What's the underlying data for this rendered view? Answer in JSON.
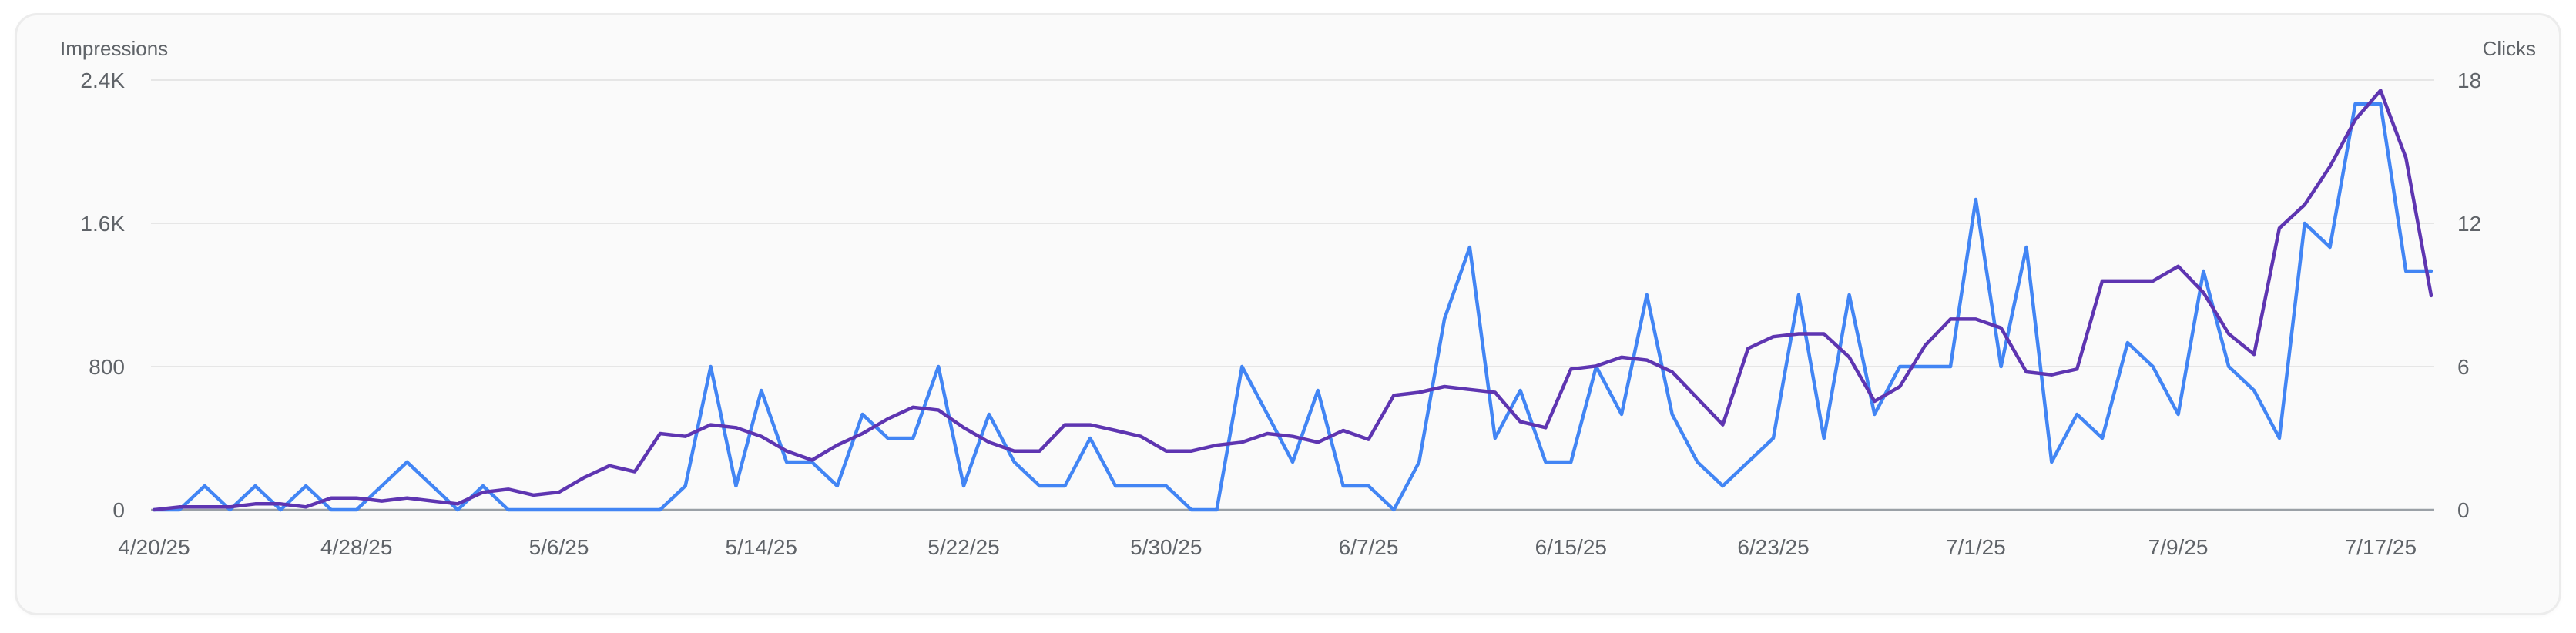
{
  "chart_data": {
    "type": "line",
    "x": [
      "4/20/25",
      "4/21/25",
      "4/22/25",
      "4/23/25",
      "4/24/25",
      "4/25/25",
      "4/26/25",
      "4/27/25",
      "4/28/25",
      "4/29/25",
      "4/30/25",
      "5/1/25",
      "5/2/25",
      "5/3/25",
      "5/4/25",
      "5/5/25",
      "5/6/25",
      "5/7/25",
      "5/8/25",
      "5/9/25",
      "5/10/25",
      "5/11/25",
      "5/12/25",
      "5/13/25",
      "5/14/25",
      "5/15/25",
      "5/16/25",
      "5/17/25",
      "5/18/25",
      "5/19/25",
      "5/20/25",
      "5/21/25",
      "5/22/25",
      "5/23/25",
      "5/24/25",
      "5/25/25",
      "5/26/25",
      "5/27/25",
      "5/28/25",
      "5/29/25",
      "5/30/25",
      "5/31/25",
      "6/1/25",
      "6/2/25",
      "6/3/25",
      "6/4/25",
      "6/5/25",
      "6/6/25",
      "6/7/25",
      "6/8/25",
      "6/9/25",
      "6/10/25",
      "6/11/25",
      "6/12/25",
      "6/13/25",
      "6/14/25",
      "6/15/25",
      "6/16/25",
      "6/17/25",
      "6/18/25",
      "6/19/25",
      "6/20/25",
      "6/21/25",
      "6/22/25",
      "6/23/25",
      "6/24/25",
      "6/25/25",
      "6/26/25",
      "6/27/25",
      "6/28/25",
      "6/29/25",
      "6/30/25",
      "7/1/25",
      "7/2/25",
      "7/3/25",
      "7/4/25",
      "7/5/25",
      "7/6/25",
      "7/7/25",
      "7/8/25",
      "7/9/25",
      "7/10/25",
      "7/11/25",
      "7/12/25",
      "7/13/25",
      "7/14/25",
      "7/15/25",
      "7/16/25",
      "7/17/25",
      "7/18/25",
      "7/19/25"
    ],
    "x_ticks": [
      "4/20/25",
      "4/28/25",
      "5/6/25",
      "5/14/25",
      "5/22/25",
      "5/30/25",
      "6/7/25",
      "6/15/25",
      "6/23/25",
      "7/1/25",
      "7/9/25",
      "7/17/25"
    ],
    "series": [
      {
        "name": "Impressions",
        "axis": "left",
        "color": "#5e35b1",
        "values": [
          0,
          16,
          16,
          16,
          33,
          33,
          16,
          66,
          66,
          49,
          66,
          49,
          33,
          98,
          115,
          82,
          98,
          180,
          246,
          213,
          426,
          410,
          475,
          459,
          410,
          328,
          278,
          361,
          426,
          508,
          573,
          557,
          459,
          377,
          328,
          328,
          475,
          475,
          443,
          410,
          328,
          328,
          361,
          377,
          426,
          410,
          377,
          443,
          393,
          639,
          656,
          688,
          672,
          656,
          492,
          459,
          786,
          803,
          852,
          836,
          770,
          623,
          475,
          901,
          967,
          983,
          983,
          852,
          606,
          688,
          918,
          1065,
          1065,
          1016,
          770,
          754,
          786,
          1278,
          1278,
          1278,
          1360,
          1213,
          983,
          868,
          1573,
          1704,
          1917,
          2179,
          2342,
          1966,
          1196
        ]
      },
      {
        "name": "Clicks",
        "axis": "right",
        "color": "#4285f4",
        "values": [
          0,
          0,
          1,
          0,
          1,
          0,
          1,
          0,
          0,
          1,
          2,
          1,
          0,
          1,
          0,
          0,
          0,
          0,
          0,
          0,
          0,
          1,
          6,
          1,
          5,
          2,
          2,
          1,
          4,
          3,
          3,
          6,
          1,
          4,
          2,
          1,
          1,
          3,
          1,
          1,
          1,
          0,
          0,
          6,
          4,
          2,
          5,
          1,
          1,
          0,
          2,
          8,
          11,
          3,
          5,
          2,
          2,
          6,
          4,
          9,
          4,
          2,
          1,
          2,
          3,
          9,
          3,
          9,
          4,
          6,
          6,
          6,
          13,
          6,
          11,
          2,
          4,
          3,
          7,
          6,
          4,
          10,
          6,
          5,
          3,
          12,
          11,
          17,
          17,
          10,
          10
        ]
      }
    ],
    "left_axis": {
      "label": "Impressions",
      "ticks": [
        "0",
        "800",
        "1.6K",
        "2.4K"
      ],
      "range": [
        0,
        2400
      ]
    },
    "right_axis": {
      "label": "Clicks",
      "ticks": [
        "0",
        "6",
        "12",
        "18"
      ],
      "range": [
        0,
        18
      ]
    },
    "grid": true,
    "legend": "none"
  }
}
